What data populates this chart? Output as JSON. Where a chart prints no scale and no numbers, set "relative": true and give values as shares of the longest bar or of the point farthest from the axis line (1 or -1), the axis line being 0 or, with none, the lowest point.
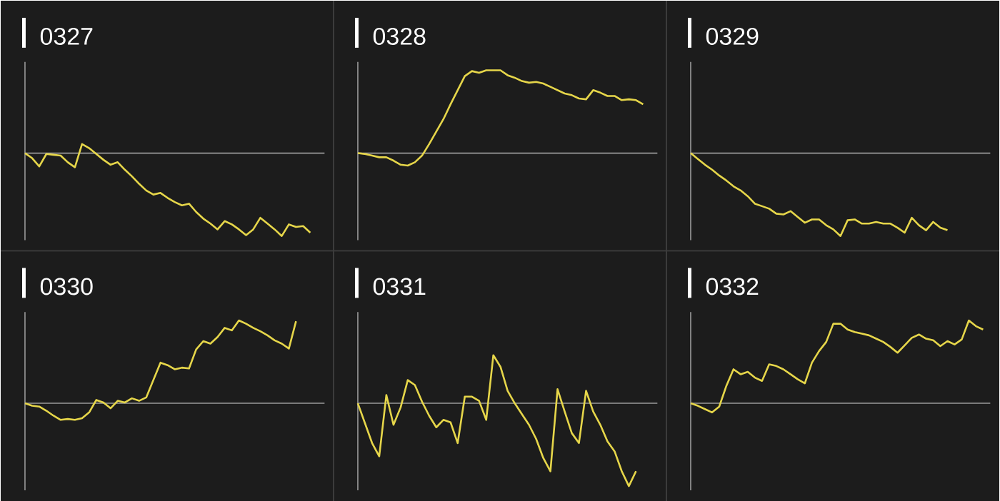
{
  "chart_data": [
    {
      "type": "line",
      "title": "0327",
      "relative": true,
      "color": "#e6d64a",
      "categories": [
        null,
        null,
        null,
        null,
        null,
        null,
        null,
        null,
        null,
        null,
        null,
        null,
        null,
        null,
        null,
        null,
        null,
        null,
        null,
        null,
        null,
        null,
        null,
        null,
        null,
        null,
        null,
        null,
        null,
        null,
        null,
        null,
        null,
        null,
        null,
        null,
        null,
        null,
        null,
        null,
        null,
        null,
        null
      ],
      "values": [
        0,
        -0.06,
        -0.16,
        -0.01,
        -0.02,
        -0.03,
        -0.11,
        -0.17,
        0.11,
        0.06,
        -0.01,
        -0.08,
        -0.14,
        -0.11,
        -0.2,
        -0.28,
        -0.37,
        -0.45,
        -0.5,
        -0.48,
        -0.54,
        -0.59,
        -0.63,
        -0.61,
        -0.71,
        -0.79,
        -0.85,
        -0.92,
        -0.82,
        -0.86,
        -0.92,
        -0.99,
        -0.92,
        -0.78,
        -0.85,
        -0.92,
        -1,
        -0.86,
        -0.89,
        -0.88,
        -0.96,
        null,
        null
      ]
    },
    {
      "type": "line",
      "title": "0328",
      "relative": true,
      "color": "#e6d64a",
      "categories": [
        null,
        null,
        null,
        null,
        null,
        null,
        null,
        null,
        null,
        null,
        null,
        null,
        null,
        null,
        null,
        null,
        null,
        null,
        null,
        null,
        null,
        null,
        null,
        null,
        null,
        null,
        null,
        null,
        null,
        null,
        null,
        null,
        null,
        null,
        null,
        null,
        null,
        null,
        null,
        null,
        null,
        null,
        null
      ],
      "values": [
        0,
        -0.01,
        -0.03,
        -0.05,
        -0.05,
        -0.09,
        -0.14,
        -0.15,
        -0.11,
        -0.03,
        0.11,
        0.26,
        0.41,
        0.59,
        0.76,
        0.93,
        0.99,
        0.97,
        1,
        1,
        1,
        0.94,
        0.91,
        0.87,
        0.85,
        0.86,
        0.84,
        0.8,
        0.76,
        0.72,
        0.7,
        0.66,
        0.65,
        0.76,
        0.73,
        0.69,
        0.69,
        0.64,
        0.65,
        0.64,
        0.59,
        null,
        null
      ]
    },
    {
      "type": "line",
      "title": "0329",
      "relative": true,
      "color": "#e6d64a",
      "categories": [
        null,
        null,
        null,
        null,
        null,
        null,
        null,
        null,
        null,
        null,
        null,
        null,
        null,
        null,
        null,
        null,
        null,
        null,
        null,
        null,
        null,
        null,
        null,
        null,
        null,
        null,
        null,
        null,
        null,
        null,
        null,
        null,
        null,
        null,
        null,
        null,
        null,
        null,
        null,
        null,
        null,
        null,
        null
      ],
      "values": [
        0,
        -0.07,
        -0.14,
        -0.2,
        -0.27,
        -0.33,
        -0.4,
        -0.45,
        -0.52,
        -0.61,
        -0.64,
        -0.67,
        -0.73,
        -0.74,
        -0.7,
        -0.77,
        -0.84,
        -0.8,
        -0.8,
        -0.87,
        -0.92,
        -1,
        -0.81,
        -0.8,
        -0.85,
        -0.85,
        -0.83,
        -0.85,
        -0.85,
        -0.9,
        -0.96,
        -0.78,
        -0.87,
        -0.93,
        -0.83,
        -0.9,
        -0.93,
        null,
        null,
        null,
        null,
        null,
        null
      ]
    },
    {
      "type": "line",
      "title": "0330",
      "relative": true,
      "color": "#e6d64a",
      "categories": [
        null,
        null,
        null,
        null,
        null,
        null,
        null,
        null,
        null,
        null,
        null,
        null,
        null,
        null,
        null,
        null,
        null,
        null,
        null,
        null,
        null,
        null,
        null,
        null,
        null,
        null,
        null,
        null,
        null,
        null,
        null,
        null,
        null,
        null,
        null,
        null,
        null,
        null,
        null,
        null,
        null,
        null,
        null
      ],
      "values": [
        0,
        -0.03,
        -0.04,
        -0.09,
        -0.15,
        -0.2,
        -0.19,
        -0.2,
        -0.18,
        -0.11,
        0.04,
        0.01,
        -0.06,
        0.03,
        0.01,
        0.06,
        0.03,
        0.07,
        0.28,
        0.49,
        0.46,
        0.41,
        0.43,
        0.42,
        0.65,
        0.75,
        0.72,
        0.8,
        0.91,
        0.88,
        1,
        0.96,
        0.91,
        0.87,
        0.82,
        0.76,
        0.72,
        0.66,
        0.99,
        null,
        null,
        null,
        null
      ]
    },
    {
      "type": "line",
      "title": "0331",
      "relative": true,
      "color": "#e6d64a",
      "categories": [
        null,
        null,
        null,
        null,
        null,
        null,
        null,
        null,
        null,
        null,
        null,
        null,
        null,
        null,
        null,
        null,
        null,
        null,
        null,
        null,
        null,
        null,
        null,
        null,
        null,
        null,
        null,
        null,
        null,
        null,
        null,
        null,
        null,
        null,
        null,
        null,
        null,
        null,
        null,
        null,
        null,
        null,
        null
      ],
      "values": [
        0,
        -0.24,
        -0.48,
        -0.64,
        0.1,
        -0.26,
        -0.05,
        0.28,
        0.22,
        0.02,
        -0.15,
        -0.29,
        -0.2,
        -0.23,
        -0.48,
        0.08,
        0.08,
        0.03,
        -0.2,
        0.58,
        0.44,
        0.15,
        0,
        -0.13,
        -0.26,
        -0.43,
        -0.66,
        -0.82,
        0.17,
        -0.1,
        -0.36,
        -0.48,
        0.15,
        -0.1,
        -0.26,
        -0.46,
        -0.58,
        -0.82,
        -1,
        -0.82,
        null,
        null,
        null
      ]
    },
    {
      "type": "line",
      "title": "0332",
      "relative": true,
      "color": "#e6d64a",
      "categories": [
        null,
        null,
        null,
        null,
        null,
        null,
        null,
        null,
        null,
        null,
        null,
        null,
        null,
        null,
        null,
        null,
        null,
        null,
        null,
        null,
        null,
        null,
        null,
        null,
        null,
        null,
        null,
        null,
        null,
        null,
        null,
        null,
        null,
        null,
        null,
        null,
        null,
        null,
        null,
        null,
        null,
        null,
        null
      ],
      "values": [
        0,
        -0.03,
        -0.07,
        -0.11,
        -0.04,
        0.21,
        0.41,
        0.35,
        0.38,
        0.31,
        0.27,
        0.47,
        0.45,
        0.41,
        0.35,
        0.29,
        0.24,
        0.49,
        0.63,
        0.74,
        0.96,
        0.96,
        0.89,
        0.86,
        0.84,
        0.82,
        0.78,
        0.74,
        0.68,
        0.61,
        0.7,
        0.79,
        0.83,
        0.78,
        0.76,
        0.69,
        0.75,
        0.71,
        0.77,
        1,
        0.93,
        0.89,
        null
      ]
    }
  ]
}
